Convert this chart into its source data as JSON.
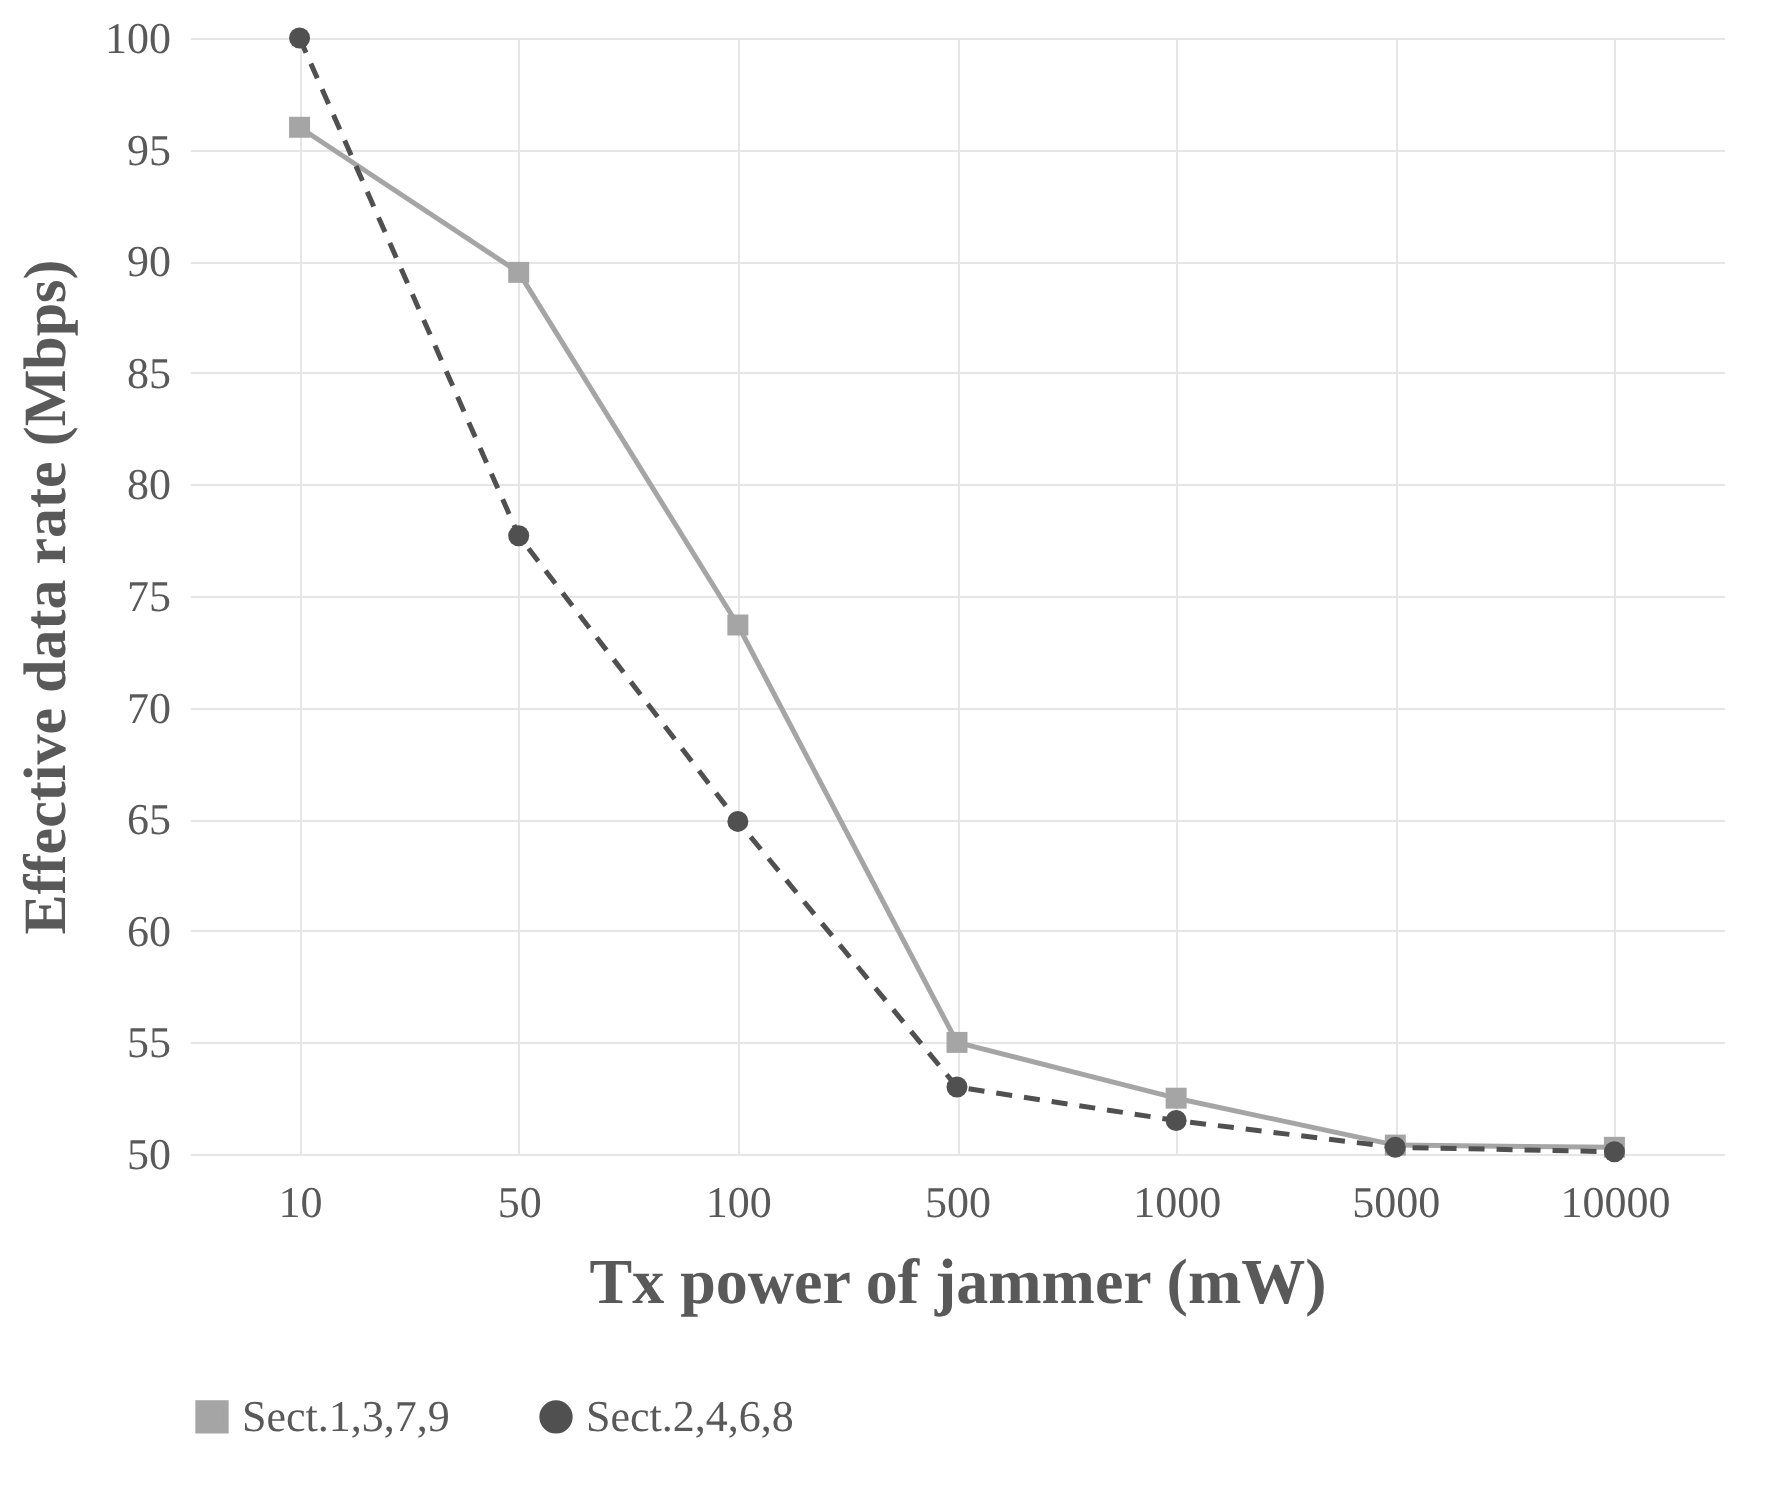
{
  "chart_data": {
    "type": "line",
    "xlabel": "Tx power of jammer (mW)",
    "ylabel": "Effective data rate (Mbps)",
    "categories": [
      "10",
      "50",
      "100",
      "500",
      "1000",
      "5000",
      "10000"
    ],
    "series": [
      {
        "name": "Sect.1,3,7,9",
        "color": "#a5a5a5",
        "marker": "square",
        "line_style": "solid",
        "values": [
          96,
          89.5,
          73.7,
          55,
          52.5,
          50.4,
          50.3
        ]
      },
      {
        "name": "Sect.2,4,6,8",
        "color": "#505050",
        "marker": "circle",
        "line_style": "dashed",
        "values": [
          100,
          77.7,
          64.9,
          53,
          51.5,
          50.3,
          50.1
        ]
      }
    ],
    "ylim": [
      50,
      100
    ],
    "yticks": [
      50,
      55,
      60,
      65,
      70,
      75,
      80,
      85,
      90,
      95,
      100
    ],
    "grid": true,
    "legend": "bottom"
  }
}
